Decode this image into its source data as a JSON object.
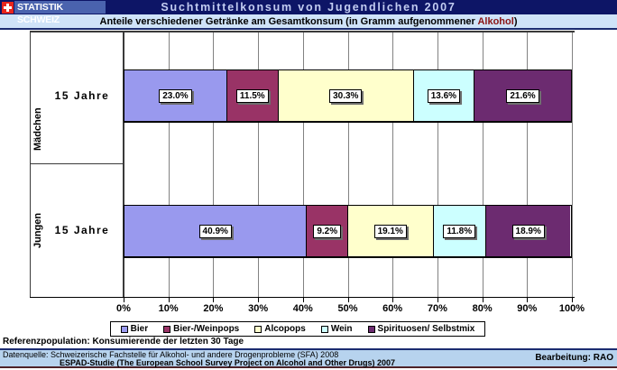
{
  "header": {
    "logo_text": "STATISTIK SCHWEIZ",
    "title": "Suchtmittelkonsum von Jugendlichen 2007"
  },
  "subtitle": {
    "prefix": "Anteile verschiedener Getränke am Gesamtkonsum (in Gramm aufgenommener ",
    "highlight": "Alkohol",
    "suffix": ")"
  },
  "chart_data": {
    "type": "bar",
    "orientation": "horizontal",
    "stacked": true,
    "series": [
      "Bier",
      "Bier-/Weinpops",
      "Alcopops",
      "Wein",
      "Spirituosen/ Selbstmix"
    ],
    "series_colors": [
      "#9999ee",
      "#993366",
      "#ffffcc",
      "#ccffff",
      "#6c2b70"
    ],
    "groups": [
      {
        "category": "Mädchen",
        "label": "15 Jahre",
        "values": [
          23.0,
          11.5,
          30.3,
          13.6,
          21.6
        ]
      },
      {
        "category": "Jungen",
        "label": "15 Jahre",
        "values": [
          40.9,
          9.2,
          19.1,
          11.8,
          18.9
        ]
      }
    ],
    "value_suffix": "%",
    "xlim": [
      0,
      100
    ],
    "x_ticks": [
      "0%",
      "10%",
      "20%",
      "30%",
      "40%",
      "50%",
      "60%",
      "70%",
      "80%",
      "90%",
      "100%"
    ],
    "grid": true,
    "legend_position": "bottom"
  },
  "footer": {
    "reference": "Referenzpopulation: Konsumierende der letzten 30 Tage",
    "source_line1": "Datenquelle: Schweizerische Fachstelle für Alkohol- und andere Drogenprobleme (SFA) 2008",
    "source_line2": "ESPAD-Studie (The European School Survey Project on Alcohol and Other Drugs) 2007",
    "credit": "Bearbeitung: RAO"
  }
}
